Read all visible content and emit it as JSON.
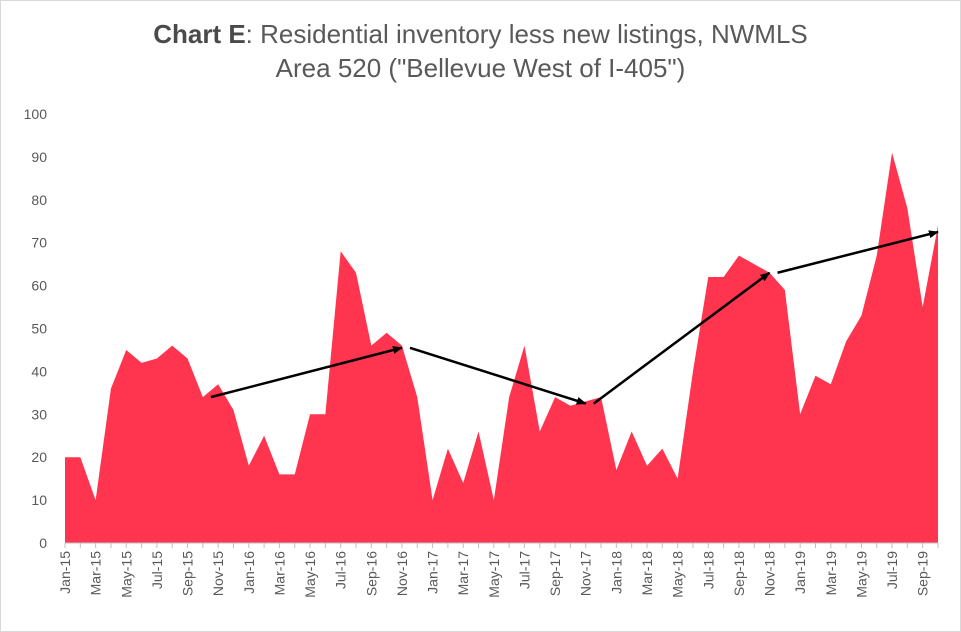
{
  "chart_data": {
    "type": "area",
    "title_bold": "Chart E",
    "title_rest": ": Residential inventory less new listings, NWMLS",
    "title_line2": "Area 520 (\"Bellevue West of I-405\")",
    "xlabel": "",
    "ylabel": "",
    "ylim": [
      0,
      100
    ],
    "yticks": [
      "0",
      "10",
      "20",
      "30",
      "40",
      "50",
      "60",
      "70",
      "80",
      "90",
      "100"
    ],
    "x": [
      "Jan-15",
      "Feb-15",
      "Mar-15",
      "Apr-15",
      "May-15",
      "Jun-15",
      "Jul-15",
      "Aug-15",
      "Sep-15",
      "Oct-15",
      "Nov-15",
      "Dec-15",
      "Jan-16",
      "Feb-16",
      "Mar-16",
      "Apr-16",
      "May-16",
      "Jun-16",
      "Jul-16",
      "Aug-16",
      "Sep-16",
      "Oct-16",
      "Nov-16",
      "Dec-16",
      "Jan-17",
      "Feb-17",
      "Mar-17",
      "Apr-17",
      "May-17",
      "Jun-17",
      "Jul-17",
      "Aug-17",
      "Sep-17",
      "Oct-17",
      "Nov-17",
      "Dec-17",
      "Jan-18",
      "Feb-18",
      "Mar-18",
      "Apr-18",
      "May-18",
      "Jun-18",
      "Jul-18",
      "Aug-18",
      "Sep-18",
      "Oct-18",
      "Nov-18",
      "Dec-18",
      "Jan-19",
      "Feb-19",
      "Mar-19",
      "Apr-19",
      "May-19",
      "Jun-19",
      "Jul-19",
      "Aug-19",
      "Sep-19",
      "Oct-19"
    ],
    "xtick_labels": [
      "Jan-15",
      "Mar-15",
      "May-15",
      "Jul-15",
      "Sep-15",
      "Nov-15",
      "Jan-16",
      "Mar-16",
      "May-16",
      "Jul-16",
      "Sep-16",
      "Nov-16",
      "Jan-17",
      "Mar-17",
      "May-17",
      "Jul-17",
      "Sep-17",
      "Nov-17",
      "Jan-18",
      "Mar-18",
      "May-18",
      "Jul-18",
      "Sep-18",
      "Nov-18",
      "Jan-19",
      "Mar-19",
      "May-19",
      "Jul-19",
      "Sep-19"
    ],
    "series": [
      {
        "color": "#ff344f",
        "values": [
          20,
          20,
          10,
          36,
          45,
          42,
          43,
          46,
          43,
          34,
          37,
          31,
          18,
          25,
          16,
          16,
          30,
          30,
          68,
          63,
          46,
          49,
          46,
          34,
          10,
          22,
          14,
          26,
          10,
          34,
          46,
          26,
          34,
          32,
          33,
          34,
          17,
          26,
          18,
          22,
          15,
          40,
          62,
          62,
          67,
          65,
          63,
          59,
          30,
          39,
          37,
          47,
          53,
          67,
          91,
          78,
          55,
          74
        ]
      }
    ],
    "trend_arrows": [
      {
        "from": [
          "Oct-15",
          34
        ],
        "to": [
          "Nov-16",
          45.5
        ]
      },
      {
        "from": [
          "Nov-16",
          45.5
        ],
        "to": [
          "Nov-17",
          32.5
        ]
      },
      {
        "from": [
          "Nov-17",
          32.5
        ],
        "to": [
          "Nov-18",
          63
        ]
      },
      {
        "from": [
          "Nov-18",
          63
        ],
        "to": [
          "Oct-19",
          72.5
        ]
      }
    ],
    "arrow_color": "#000000",
    "grid": false,
    "legend": "none"
  }
}
